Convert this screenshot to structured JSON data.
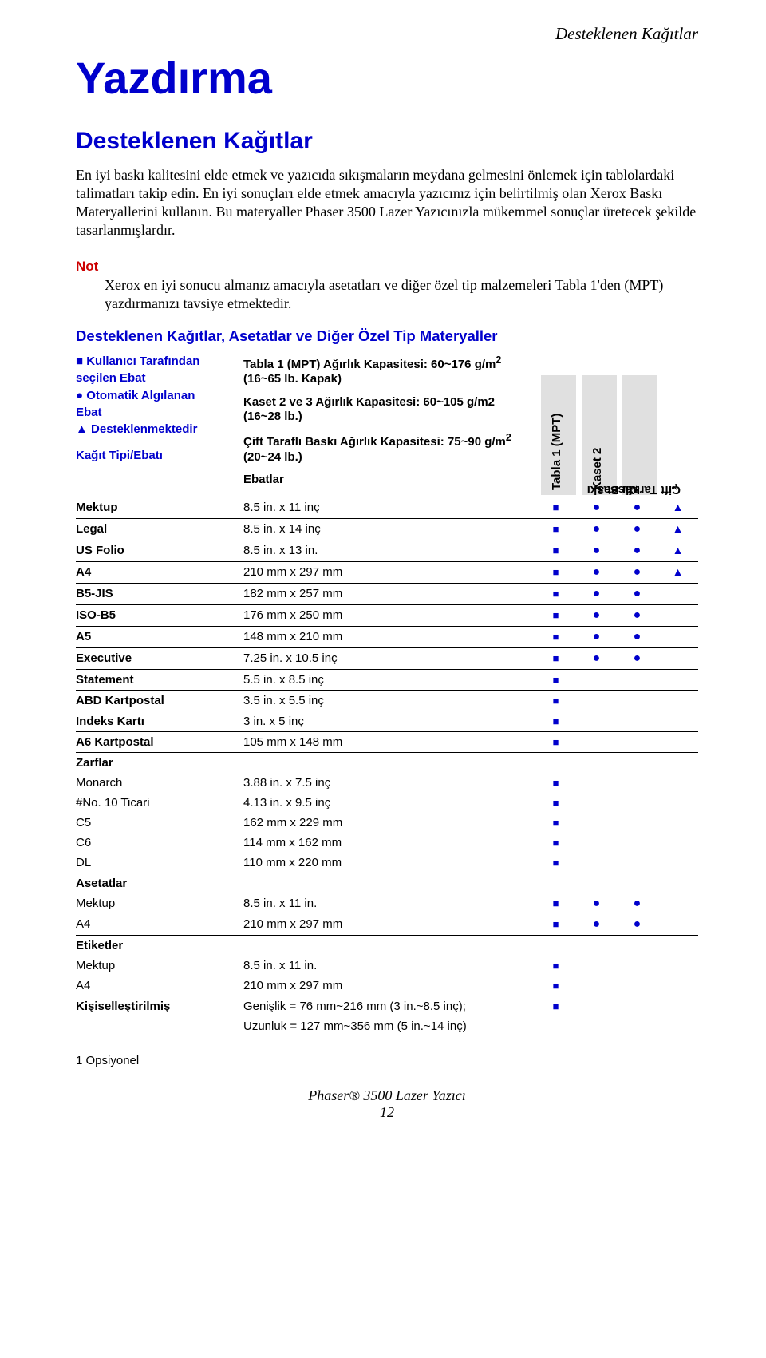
{
  "header_right": "Desteklenen Kağıtlar",
  "title_main": "Yazdırma",
  "title_sub": "Desteklenen Kağıtlar",
  "para1": "En iyi baskı kalitesini elde etmek ve yazıcıda sıkışmaların meydana gelmesini önlemek için tablolardaki talimatları takip edin. En iyi sonuçları elde etmek amacıyla yazıcınız için belirtilmiş olan Xerox Baskı Materyallerini kullanın. Bu materyaller Phaser 3500 Lazer Yazıcınızla mükemmel sonuçlar üretecek şekilde tasarlanmışlardır.",
  "not_label": "Not",
  "not_body": "Xerox en iyi sonucu almanız amacıyla asetatları ve diğer özel tip malzemeleri Tabla 1'den (MPT) yazdırmanızı tavsiye etmektedir.",
  "section_title": "Desteklenen Kağıtlar, Asetatlar ve Diğer Özel Tip Materyaller",
  "legend": {
    "l1a": "■ Kullanıcı Tarafından",
    "l1b": "seçilen Ebat",
    "l2a": "●   Otomatik Algılanan",
    "l2b": "Ebat",
    "l3": "▲   Desteklenmektedir",
    "l4": "Kağıt Tipi/Ebatı"
  },
  "capacity": {
    "c1a": "Tabla 1 (MPT) Ağırlık Kapasitesi: 60~176 g/m",
    "c1b": " (16~65 lb. Kapak)",
    "c2": "Kaset 2 ve 3 Ağırlık Kapasitesi: 60~105 g/m2 (16~28 lb.)",
    "c3a": "Çift Taraflı Baskı Ağırlık Kapasitesi: 75~90 g/m",
    "c3b": " (20~24 lb.)",
    "c4": "Ebatlar"
  },
  "colhdrs": {
    "h1": "Tabla 1 (MPT)",
    "h2": "Kaset 2",
    "h3_a": "Kaset 3",
    "h3_b": "1",
    "h4_a": "Çift Taraflı Baskı",
    "h4_b": "2"
  },
  "rows": [
    {
      "name": "Mektup",
      "size": "8.5 in. x 11 inç",
      "m": [
        "■",
        "●",
        "●",
        "▲"
      ],
      "border": true,
      "bold": true
    },
    {
      "name": "Legal",
      "size": "8.5 in. x 14 inç",
      "m": [
        "■",
        "●",
        "●",
        "▲"
      ],
      "border": true,
      "bold": true
    },
    {
      "name": "US Folio",
      "size": "8.5 in. x 13 in.",
      "m": [
        "■",
        "●",
        "●",
        "▲"
      ],
      "border": true,
      "bold": true
    },
    {
      "name": "A4",
      "size": "210 mm x 297 mm",
      "m": [
        "■",
        "●",
        "●",
        "▲"
      ],
      "border": true,
      "bold": true
    },
    {
      "name": "B5-JIS",
      "size": "182 mm x 257 mm",
      "m": [
        "■",
        "●",
        "●",
        ""
      ],
      "border": true,
      "bold": true
    },
    {
      "name": "ISO-B5",
      "size": "176 mm x 250 mm",
      "m": [
        "■",
        "●",
        "●",
        ""
      ],
      "border": true,
      "bold": true
    },
    {
      "name": "A5",
      "size": "148 mm x 210 mm",
      "m": [
        "■",
        "●",
        "●",
        ""
      ],
      "border": true,
      "bold": true
    },
    {
      "name": "Executive",
      "size": "7.25 in. x 10.5 inç",
      "m": [
        "■",
        "●",
        "●",
        ""
      ],
      "border": true,
      "bold": true
    },
    {
      "name": "Statement",
      "size": "5.5 in. x 8.5 inç",
      "m": [
        "■",
        "",
        "",
        ""
      ],
      "border": true,
      "bold": true
    },
    {
      "name": "ABD Kartpostal",
      "size": "3.5 in. x 5.5 inç",
      "m": [
        "■",
        "",
        "",
        ""
      ],
      "border": true,
      "bold": true
    },
    {
      "name": "Indeks Kartı",
      "size": "3 in. x 5 inç",
      "m": [
        "■",
        "",
        "",
        ""
      ],
      "border": true,
      "bold": true
    },
    {
      "name": "A6 Kartpostal",
      "size": "105 mm x 148 mm",
      "m": [
        "■",
        "",
        "",
        ""
      ],
      "border": true,
      "bold": true
    },
    {
      "name": "Zarflar",
      "size": "",
      "m": [
        "",
        "",
        "",
        ""
      ],
      "border": true,
      "bold": true
    },
    {
      "name": "Monarch",
      "size": "3.88 in. x 7.5 inç",
      "m": [
        "■",
        "",
        "",
        ""
      ],
      "border": false,
      "bold": false
    },
    {
      "name": "#No. 10 Ticari",
      "size": "4.13 in. x 9.5 inç",
      "m": [
        "■",
        "",
        "",
        ""
      ],
      "border": false,
      "bold": false
    },
    {
      "name": "C5",
      "size": "162 mm x 229 mm",
      "m": [
        "■",
        "",
        "",
        ""
      ],
      "border": false,
      "bold": false
    },
    {
      "name": "C6",
      "size": "114 mm x 162 mm",
      "m": [
        "■",
        "",
        "",
        ""
      ],
      "border": false,
      "bold": false
    },
    {
      "name": "DL",
      "size": "110 mm x 220 mm",
      "m": [
        "■",
        "",
        "",
        ""
      ],
      "border": false,
      "bold": false
    },
    {
      "name": "Asetatlar",
      "size": "",
      "m": [
        "",
        "",
        "",
        ""
      ],
      "border": true,
      "bold": true
    },
    {
      "name": "Mektup",
      "size": "8.5 in. x 11 in.",
      "m": [
        "■",
        "●",
        "●",
        ""
      ],
      "border": false,
      "bold": false
    },
    {
      "name": "A4",
      "size": "210 mm x 297 mm",
      "m": [
        "■",
        "●",
        "●",
        ""
      ],
      "border": false,
      "bold": false
    },
    {
      "name": "Etiketler",
      "size": "",
      "m": [
        "",
        "",
        "",
        ""
      ],
      "border": true,
      "bold": true
    },
    {
      "name": "Mektup",
      "size": "8.5 in. x 11 in.",
      "m": [
        "■",
        "",
        "",
        ""
      ],
      "border": false,
      "bold": false
    },
    {
      "name": "A4",
      "size": "210 mm x 297 mm",
      "m": [
        "■",
        "",
        "",
        ""
      ],
      "border": false,
      "bold": false
    },
    {
      "name": "Kişiselleştirilmiş",
      "size": "Genişlik = 76 mm~216 mm (3 in.~8.5 inç);",
      "m": [
        "■",
        "",
        "",
        ""
      ],
      "border": true,
      "bold": true
    },
    {
      "name": "",
      "size": "Uzunluk = 127 mm~356 mm (5 in.~14 inç)",
      "m": [
        "",
        "",
        "",
        ""
      ],
      "border": false,
      "bold": false
    }
  ],
  "footer_note": "1  Opsiyonel",
  "footer_center": "Phaser® 3500 Lazer Yazıcı",
  "footer_page": "12"
}
